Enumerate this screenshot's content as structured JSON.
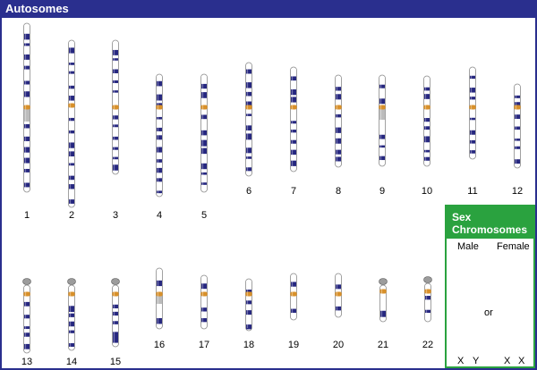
{
  "header": {
    "title": "Autosomes"
  },
  "autosomes": [
    {
      "label": "1"
    },
    {
      "label": "2"
    },
    {
      "label": "3"
    },
    {
      "label": "4"
    },
    {
      "label": "5"
    },
    {
      "label": "6"
    },
    {
      "label": "7"
    },
    {
      "label": "8"
    },
    {
      "label": "9"
    },
    {
      "label": "10"
    },
    {
      "label": "11"
    },
    {
      "label": "12"
    },
    {
      "label": "13"
    },
    {
      "label": "14"
    },
    {
      "label": "15"
    },
    {
      "label": "16"
    },
    {
      "label": "17"
    },
    {
      "label": "18"
    },
    {
      "label": "19"
    },
    {
      "label": "20"
    },
    {
      "label": "21"
    },
    {
      "label": "22"
    }
  ],
  "sex_chromosomes": {
    "title_line1": "Sex",
    "title_line2": "Chromosomes",
    "male_label": "Male",
    "female_label": "Female",
    "or_label": "or",
    "male_x": "X",
    "male_y": "Y",
    "female_x1": "X",
    "female_x2": "X"
  },
  "colors": {
    "autosome_band": "#26277f",
    "sex_band": "#18957b",
    "centromere": "#d8902a",
    "heterochromatin": "#bcbcbc",
    "frame": "#2a2f8e",
    "sex_frame": "#2aa23f"
  }
}
